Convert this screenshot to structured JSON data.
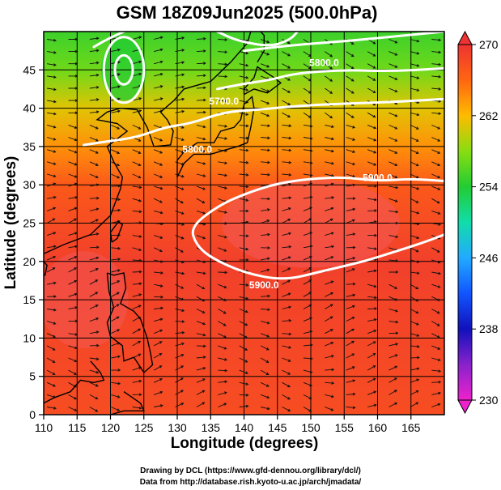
{
  "chart_data": {
    "type": "heatmap",
    "title": "GSM 18Z09Jun2025 (500.0hPa)",
    "xlabel": "Longitude (degrees)",
    "ylabel": "Latitude  (degrees)",
    "xlim": [
      110,
      170
    ],
    "ylim": [
      0,
      50
    ],
    "xticks": [
      110,
      115,
      120,
      125,
      130,
      135,
      140,
      145,
      150,
      155,
      160,
      165
    ],
    "yticks": [
      0,
      5,
      10,
      15,
      20,
      25,
      30,
      35,
      40,
      45
    ],
    "colorbar": {
      "min": 230,
      "max": 270,
      "ticks": [
        230,
        238,
        246,
        254,
        262,
        270
      ],
      "stops": [
        {
          "value": 230,
          "color": "#ee22cc"
        },
        {
          "value": 234,
          "color": "#8822cc"
        },
        {
          "value": 238,
          "color": "#1111bb"
        },
        {
          "value": 242,
          "color": "#1155ff"
        },
        {
          "value": 246,
          "color": "#22aaff"
        },
        {
          "value": 250,
          "color": "#11ddaa"
        },
        {
          "value": 254,
          "color": "#22cc33"
        },
        {
          "value": 258,
          "color": "#88dd11"
        },
        {
          "value": 262,
          "color": "#ffbb00"
        },
        {
          "value": 266,
          "color": "#ff6611"
        },
        {
          "value": 270,
          "color": "#ee3333"
        }
      ]
    },
    "temperature_field": {
      "description": "500hPa temperature (K), shaded",
      "zones": [
        {
          "lat": 50,
          "value": 255
        },
        {
          "lat": 45,
          "value": 257
        },
        {
          "lat": 40,
          "value": 261
        },
        {
          "lat": 35,
          "value": 264
        },
        {
          "lat": 30,
          "value": 267
        },
        {
          "lat": 20,
          "value": 269
        },
        {
          "lat": 0,
          "value": 268
        }
      ]
    },
    "contours": [
      {
        "label": "5800.0",
        "points": [
          [
            140,
            47.5
          ],
          [
            148,
            48.3
          ],
          [
            156,
            48.8
          ],
          [
            164,
            49.5
          ],
          [
            170,
            50
          ]
        ]
      },
      {
        "label": "5700.0",
        "points": [
          [
            136,
            42.5
          ],
          [
            140,
            43.2
          ],
          [
            144,
            43.7
          ],
          [
            148,
            44.6
          ],
          [
            155,
            45.0
          ],
          [
            162,
            44.8
          ],
          [
            170,
            45.2
          ]
        ]
      },
      {
        "label": "5800.0",
        "points": [
          [
            116,
            35.2
          ],
          [
            119,
            35.6
          ],
          [
            124,
            36.2
          ],
          [
            128,
            37.5
          ],
          [
            132,
            38.0
          ],
          [
            137,
            39.5
          ],
          [
            142,
            39.8
          ],
          [
            148,
            40.3
          ],
          [
            155,
            40.6
          ],
          [
            162,
            40.8
          ],
          [
            170,
            41.2
          ]
        ]
      },
      {
        "label": "5900.0",
        "points": [
          [
            170,
            30.5
          ],
          [
            165,
            30.8
          ],
          [
            160,
            30.5
          ],
          [
            155,
            31.0
          ],
          [
            150,
            30.8
          ],
          [
            145,
            30.2
          ],
          [
            140,
            28.8
          ],
          [
            136,
            27.2
          ],
          [
            132,
            24.5
          ],
          [
            132.8,
            22.2
          ],
          [
            135,
            20.5
          ],
          [
            140,
            18.5
          ],
          [
            146,
            17.5
          ],
          [
            152,
            18.8
          ],
          [
            158,
            20.0
          ],
          [
            163,
            21.4
          ],
          [
            167,
            22.5
          ],
          [
            170,
            23.5
          ]
        ]
      },
      {
        "label": "",
        "points": [
          [
            117.5,
            48
          ],
          [
            119.5,
            49
          ],
          [
            122,
            50
          ]
        ]
      },
      {
        "label": "",
        "points": [
          [
            136,
            50
          ],
          [
            139,
            48.8
          ],
          [
            144,
            48.0
          ],
          [
            147,
            49.0
          ],
          [
            148,
            50
          ]
        ]
      }
    ],
    "low_center": {
      "lon": 122,
      "lat": 45,
      "ring_radii_deg": [
        2.0,
        4.5
      ]
    },
    "annotations": [
      {
        "text": "5800.0",
        "lon": 152,
        "lat": 45.5
      },
      {
        "text": "5700.0",
        "lon": 137,
        "lat": 40.5
      },
      {
        "text": "5800.0",
        "lon": 133,
        "lat": 34.2
      },
      {
        "text": "5900.0",
        "lon": 160,
        "lat": 30.5
      },
      {
        "text": "5900.0",
        "lon": 143,
        "lat": 16.5
      }
    ]
  },
  "credits": {
    "line1": "Drawing by DCL (https://www.gfd-dennou.org/library/dcl/)",
    "line2": "Data from http://database.rish.kyoto-u.ac.jp/arch/jmadata/"
  }
}
